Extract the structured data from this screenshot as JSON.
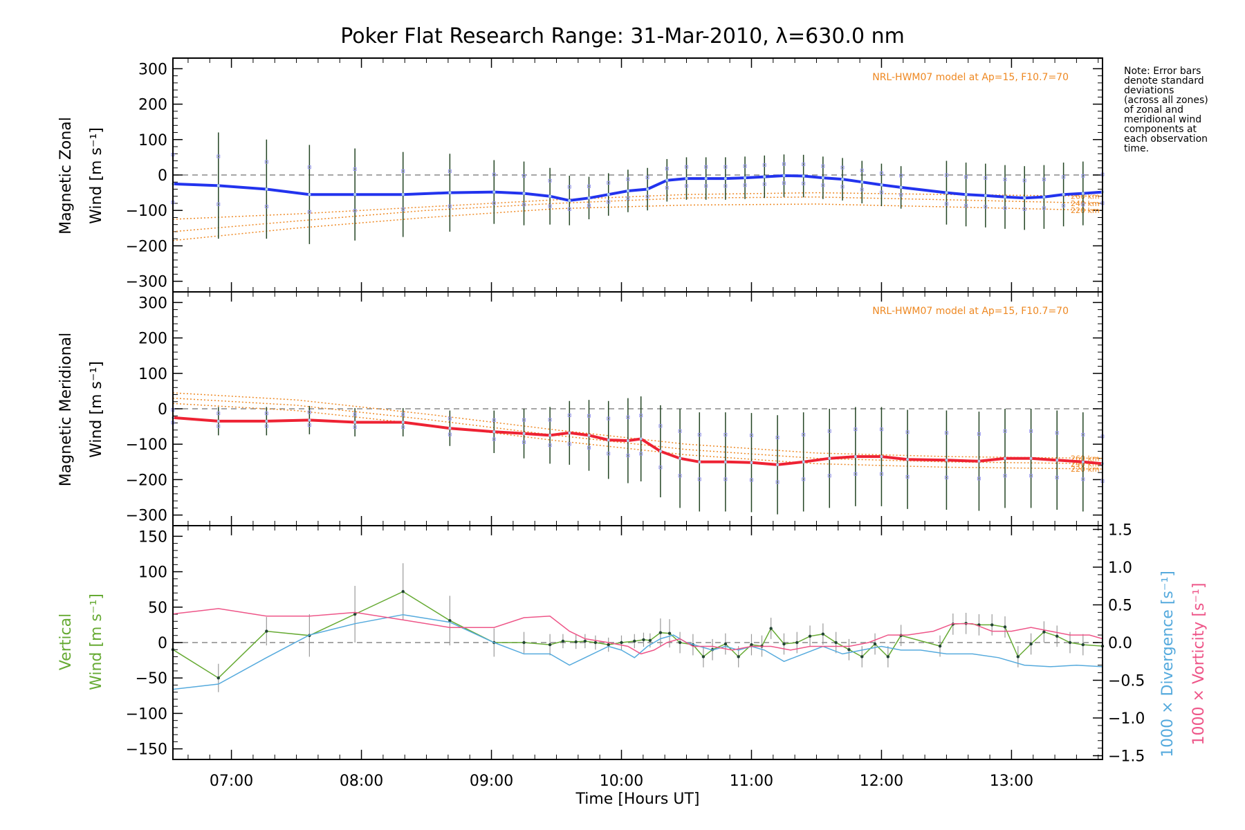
{
  "title": "Poker Flat Research Range: 31-Mar-2010, λ=630.0 nm",
  "note": "Note: Error bars\ndenote standard\ndeviations\n(across all zones)\nof zonal and\nmeridional wind\ncomponents at\neach observation\ntime.",
  "model_label": "NRL-HWM07 model at Ap=15, F10.7=70",
  "model_altitudes": [
    "260 km",
    "240 km",
    "220 km"
  ],
  "xlabel": "Time [Hours UT]",
  "colors": {
    "zonal": "#2233ee",
    "meridional": "#ee2233",
    "vertical": "#66aa33",
    "divergence": "#55aadd",
    "vorticity": "#ee5588",
    "model": "#ee8822",
    "errorbar": "#224422"
  },
  "chart_data": [
    {
      "type": "line",
      "name": "zonal",
      "ylabel_line1": "Magnetic Zonal",
      "ylabel_line2": "Wind [m s⁻¹]",
      "xlim": [
        6.55,
        13.7
      ],
      "ylim": [
        -330,
        330
      ],
      "yticks": [
        -300,
        -200,
        -100,
        0,
        100,
        200,
        300
      ],
      "xticks": [
        7,
        8,
        9,
        10,
        11,
        12,
        13
      ],
      "xticklabels": [
        "07:00",
        "08:00",
        "09:00",
        "10:00",
        "11:00",
        "12:00",
        "13:00"
      ],
      "x": [
        6.55,
        6.9,
        7.27,
        7.6,
        7.95,
        8.32,
        8.68,
        9.02,
        9.25,
        9.45,
        9.6,
        9.75,
        9.9,
        10.05,
        10.2,
        10.35,
        10.5,
        10.65,
        10.8,
        10.95,
        11.1,
        11.25,
        11.4,
        11.55,
        11.7,
        11.85,
        12.0,
        12.15,
        12.5,
        12.65,
        12.8,
        12.95,
        13.1,
        13.25,
        13.4,
        13.55,
        13.7
      ],
      "values": [
        -25,
        -30,
        -40,
        -55,
        -55,
        -55,
        -50,
        -48,
        -52,
        -60,
        -72,
        -65,
        -55,
        -45,
        -40,
        -15,
        -10,
        -10,
        -10,
        -8,
        -5,
        -2,
        -3,
        -8,
        -12,
        -20,
        -28,
        -35,
        -50,
        -55,
        -58,
        -62,
        -65,
        -62,
        -55,
        -52,
        -48
      ],
      "errors": [
        150,
        150,
        140,
        140,
        130,
        120,
        110,
        90,
        90,
        80,
        70,
        60,
        60,
        60,
        60,
        60,
        60,
        60,
        60,
        60,
        60,
        60,
        60,
        60,
        60,
        60,
        60,
        60,
        90,
        90,
        90,
        90,
        90,
        90,
        90,
        90,
        90
      ],
      "model": [
        {
          "label": "260 km",
          "x": [
            6.55,
            7.5,
            8.5,
            9.5,
            10.5,
            11.5,
            12.5,
            13.7
          ],
          "values": [
            -125,
            -110,
            -90,
            -70,
            -55,
            -50,
            -55,
            -60
          ]
        },
        {
          "label": "240 km",
          "x": [
            6.55,
            7.5,
            8.5,
            9.5,
            10.5,
            11.5,
            12.5,
            13.7
          ],
          "values": [
            -160,
            -130,
            -100,
            -80,
            -65,
            -62,
            -70,
            -80
          ]
        },
        {
          "label": "220 km",
          "x": [
            6.55,
            7.5,
            8.5,
            9.5,
            10.5,
            11.5,
            12.5,
            13.7
          ],
          "values": [
            -185,
            -150,
            -120,
            -95,
            -85,
            -82,
            -90,
            -100
          ]
        }
      ]
    },
    {
      "type": "line",
      "name": "meridional",
      "ylabel_line1": "Magnetic Meridional",
      "ylabel_line2": "Wind [m s⁻¹]",
      "xlim": [
        6.55,
        13.7
      ],
      "ylim": [
        -330,
        330
      ],
      "yticks": [
        -300,
        -200,
        -100,
        0,
        100,
        200,
        300
      ],
      "xticks": [
        7,
        8,
        9,
        10,
        11,
        12,
        13
      ],
      "x": [
        6.55,
        6.9,
        7.27,
        7.6,
        7.95,
        8.32,
        8.68,
        9.02,
        9.25,
        9.45,
        9.6,
        9.75,
        9.9,
        10.05,
        10.15,
        10.3,
        10.45,
        10.6,
        10.8,
        11.0,
        11.2,
        11.4,
        11.6,
        11.8,
        12.0,
        12.2,
        12.5,
        12.75,
        12.95,
        13.15,
        13.35,
        13.55,
        13.7
      ],
      "values": [
        -25,
        -35,
        -35,
        -32,
        -38,
        -38,
        -55,
        -65,
        -70,
        -75,
        -68,
        -75,
        -88,
        -90,
        -85,
        -120,
        -140,
        -150,
        -150,
        -152,
        -158,
        -150,
        -140,
        -135,
        -135,
        -143,
        -145,
        -148,
        -140,
        -140,
        -145,
        -150,
        -155
      ],
      "errors": [
        40,
        40,
        40,
        40,
        40,
        40,
        50,
        60,
        70,
        80,
        90,
        100,
        110,
        120,
        120,
        130,
        140,
        140,
        140,
        140,
        140,
        140,
        140,
        140,
        140,
        140,
        140,
        140,
        140,
        140,
        140,
        140,
        140
      ],
      "model": [
        {
          "label": "260 km",
          "x": [
            6.55,
            7.5,
            8.5,
            9.5,
            10.5,
            11.5,
            12.5,
            13.7
          ],
          "values": [
            45,
            25,
            -15,
            -60,
            -100,
            -125,
            -135,
            -140
          ]
        },
        {
          "label": "240 km",
          "x": [
            6.55,
            7.5,
            8.5,
            9.5,
            10.5,
            11.5,
            12.5,
            13.7
          ],
          "values": [
            30,
            10,
            -30,
            -75,
            -115,
            -140,
            -150,
            -155
          ]
        },
        {
          "label": "220 km",
          "x": [
            6.55,
            7.5,
            8.5,
            9.5,
            10.5,
            11.5,
            12.5,
            13.7
          ],
          "values": [
            15,
            -5,
            -45,
            -90,
            -130,
            -155,
            -165,
            -170
          ]
        }
      ]
    },
    {
      "type": "line",
      "name": "vertical",
      "ylabel_line1": "Vertical",
      "ylabel_line2": "Wind [m s⁻¹]",
      "right_label1": "1000 × Divergence [s⁻¹]",
      "right_label2": "1000 × Vorticity [s⁻¹]",
      "xlim": [
        6.55,
        13.7
      ],
      "ylim": [
        -165,
        165
      ],
      "yticks": [
        -150,
        -100,
        -50,
        0,
        50,
        100,
        150
      ],
      "y2lim": [
        -1.55,
        1.55
      ],
      "y2ticks": [
        -1.5,
        -1.0,
        -0.5,
        0.0,
        0.5,
        1.0,
        1.5
      ],
      "y2ticklabels": [
        "−1.5",
        "−1.0",
        "−0.5",
        "0.0",
        "0.5",
        "1.0",
        "1.5"
      ],
      "xticks": [
        7,
        8,
        9,
        10,
        11,
        12,
        13
      ],
      "series": [
        {
          "name": "Vertical Wind",
          "axis": "left",
          "x": [
            6.55,
            6.9,
            7.27,
            7.6,
            7.95,
            8.32,
            8.68,
            9.02,
            9.25,
            9.45,
            9.55,
            9.65,
            9.72,
            9.8,
            9.9,
            10.0,
            10.1,
            10.17,
            10.22,
            10.3,
            10.37,
            10.45,
            10.55,
            10.63,
            10.7,
            10.8,
            10.9,
            11.0,
            11.08,
            11.15,
            11.25,
            11.35,
            11.45,
            11.55,
            11.65,
            11.75,
            11.85,
            11.95,
            12.05,
            12.15,
            12.45,
            12.55,
            12.65,
            12.75,
            12.85,
            12.95,
            13.05,
            13.15,
            13.25,
            13.35,
            13.45,
            13.55,
            13.7
          ],
          "values": [
            -10,
            -50,
            16,
            10,
            40,
            72,
            31,
            0,
            0,
            -3,
            2,
            1,
            2,
            0,
            -3,
            0,
            2,
            4,
            3,
            14,
            13,
            0,
            -3,
            -20,
            -10,
            -2,
            -20,
            -3,
            -5,
            20,
            -2,
            0,
            9,
            12,
            0,
            -10,
            -20,
            -2,
            -20,
            10,
            -5,
            26,
            27,
            25,
            25,
            22,
            -20,
            -2,
            15,
            9,
            0,
            -3,
            -5
          ],
          "errors": [
            30,
            20,
            20,
            30,
            40,
            40,
            35,
            20,
            15,
            15,
            10,
            10,
            10,
            10,
            10,
            10,
            10,
            10,
            10,
            20,
            20,
            15,
            15,
            15,
            15,
            15,
            15,
            15,
            15,
            15,
            15,
            15,
            15,
            15,
            15,
            15,
            15,
            15,
            15,
            15,
            15,
            15,
            15,
            15,
            15,
            15,
            15,
            15,
            15,
            15,
            15,
            15,
            15
          ]
        },
        {
          "name": "1000 x Divergence",
          "axis": "right",
          "x": [
            6.55,
            6.9,
            7.27,
            7.6,
            7.95,
            8.32,
            8.68,
            9.02,
            9.25,
            9.45,
            9.6,
            9.72,
            9.9,
            10.0,
            10.1,
            10.2,
            10.3,
            10.4,
            10.5,
            10.6,
            10.7,
            10.8,
            10.9,
            11.0,
            11.1,
            11.25,
            11.4,
            11.55,
            11.7,
            11.85,
            12.0,
            12.15,
            12.3,
            12.5,
            12.7,
            12.9,
            13.1,
            13.3,
            13.5,
            13.7
          ],
          "values": [
            -0.62,
            -0.55,
            -0.2,
            0.1,
            0.25,
            0.37,
            0.27,
            0.0,
            -0.15,
            -0.15,
            -0.3,
            -0.2,
            -0.05,
            -0.1,
            -0.2,
            -0.05,
            0.05,
            0.1,
            0.0,
            -0.05,
            -0.1,
            -0.05,
            -0.1,
            -0.05,
            -0.1,
            -0.25,
            -0.15,
            -0.05,
            -0.15,
            -0.1,
            -0.05,
            -0.1,
            -0.1,
            -0.15,
            -0.15,
            -0.2,
            -0.3,
            -0.32,
            -0.3,
            -0.32
          ]
        },
        {
          "name": "1000 x Vorticity",
          "axis": "right",
          "x": [
            6.55,
            6.75,
            6.9,
            7.27,
            7.6,
            7.95,
            8.32,
            8.68,
            9.02,
            9.25,
            9.45,
            9.6,
            9.72,
            9.9,
            10.05,
            10.15,
            10.25,
            10.35,
            10.45,
            10.55,
            10.7,
            10.85,
            11.0,
            11.15,
            11.3,
            11.45,
            11.6,
            11.75,
            11.9,
            12.05,
            12.2,
            12.4,
            12.55,
            12.7,
            12.85,
            13.0,
            13.15,
            13.3,
            13.45,
            13.6,
            13.7
          ],
          "values": [
            0.38,
            0.42,
            0.45,
            0.35,
            0.35,
            0.4,
            0.3,
            0.2,
            0.2,
            0.33,
            0.35,
            0.15,
            0.05,
            0.0,
            -0.05,
            -0.15,
            -0.1,
            0.0,
            0.05,
            -0.05,
            -0.05,
            -0.1,
            -0.05,
            -0.05,
            -0.1,
            -0.05,
            -0.05,
            -0.05,
            0.0,
            0.1,
            0.1,
            0.15,
            0.25,
            0.25,
            0.15,
            0.15,
            0.2,
            0.15,
            0.1,
            0.1,
            0.05
          ]
        }
      ]
    }
  ]
}
